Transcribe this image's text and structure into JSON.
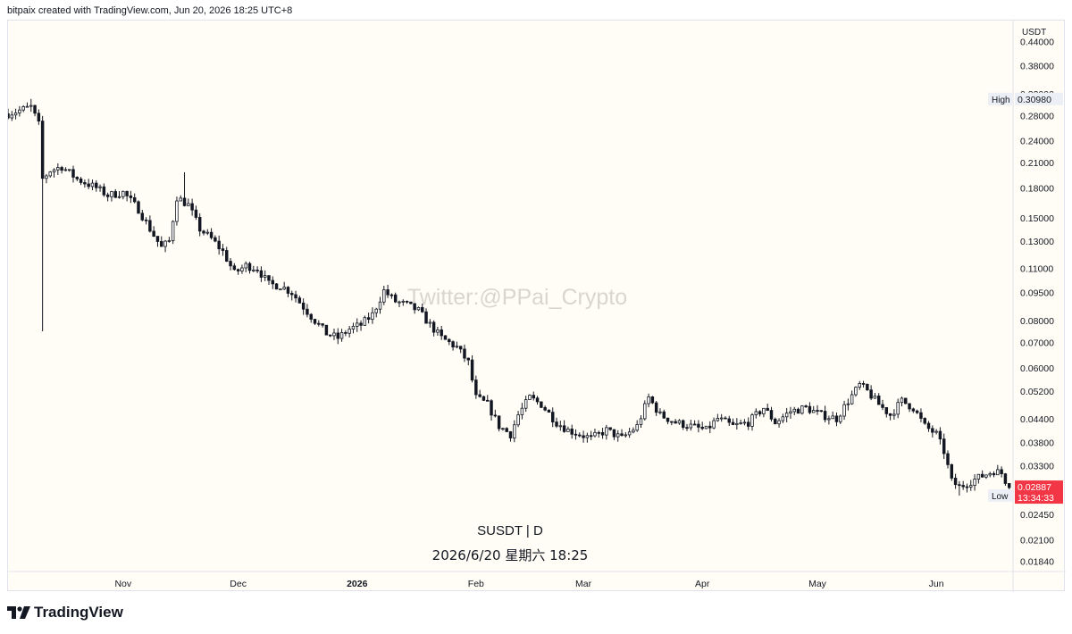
{
  "header": {
    "caption": "bitpaix created with TradingView.com, Jun 20, 2026 18:25 UTC+8"
  },
  "footer": {
    "brand": "TradingView"
  },
  "colors": {
    "up": "#22ab94",
    "down": "#f23645",
    "candle_fill": "#ffffff",
    "candle_stroke": "#131722",
    "down_body": "#131722",
    "last_price_bg": "#f23645",
    "bg": "#fffdf5"
  },
  "chart_data": {
    "type": "candlestick",
    "symbol": "SUSDT | D",
    "timestamp": "2026/6/20 星期六 18:25",
    "watermark": "Twitter:@PPai_Crypto",
    "y_axis_title": "USDT",
    "y_scale": "log",
    "y_ticks": [
      "0.44000",
      "0.38000",
      "0.32000",
      "0.28000",
      "0.24000",
      "0.21000",
      "0.18000",
      "0.15000",
      "0.13000",
      "0.11000",
      "0.09500",
      "0.08000",
      "0.07000",
      "0.06000",
      "0.05200",
      "0.04400",
      "0.03800",
      "0.03300",
      "0.02850",
      "0.02450",
      "0.02100",
      "0.01840"
    ],
    "x_ticks": [
      {
        "label": "Nov",
        "date": "2025-11-01",
        "bold": false
      },
      {
        "label": "Dec",
        "date": "2025-12-01",
        "bold": false
      },
      {
        "label": "2026",
        "date": "2026-01-01",
        "bold": true
      },
      {
        "label": "Feb",
        "date": "2026-02-01",
        "bold": false
      },
      {
        "label": "Mar",
        "date": "2026-03-01",
        "bold": false
      },
      {
        "label": "Apr",
        "date": "2026-04-01",
        "bold": false
      },
      {
        "label": "May",
        "date": "2026-05-01",
        "bold": false
      },
      {
        "label": "Jun",
        "date": "2026-06-01",
        "bold": false
      }
    ],
    "x_range": [
      "2025-10-02",
      "2026-06-21"
    ],
    "y_range": [
      0.0173,
      0.5
    ],
    "high": {
      "label": "High",
      "value": "0.30980",
      "price": 0.3098
    },
    "low": {
      "label": "Low",
      "value": "0.02751",
      "price": 0.02751
    },
    "last": {
      "value": "0.02887",
      "countdown": "13:34:33",
      "price": 0.02887
    },
    "close_path": [
      [
        "2025-10-02",
        0.283
      ],
      [
        "2025-10-08",
        0.295
      ],
      [
        "2025-10-10",
        0.265
      ],
      [
        "2025-10-11",
        0.19
      ],
      [
        "2025-10-13",
        0.2
      ],
      [
        "2025-10-16",
        0.205
      ],
      [
        "2025-10-20",
        0.19
      ],
      [
        "2025-10-25",
        0.18
      ],
      [
        "2025-10-28",
        0.172
      ],
      [
        "2025-11-01",
        0.175
      ],
      [
        "2025-11-05",
        0.158
      ],
      [
        "2025-11-08",
        0.14
      ],
      [
        "2025-11-11",
        0.125
      ],
      [
        "2025-11-13",
        0.13
      ],
      [
        "2025-11-15",
        0.17
      ],
      [
        "2025-11-18",
        0.162
      ],
      [
        "2025-11-21",
        0.14
      ],
      [
        "2025-11-24",
        0.132
      ],
      [
        "2025-11-27",
        0.122
      ],
      [
        "2025-11-30",
        0.107
      ],
      [
        "2025-12-03",
        0.112
      ],
      [
        "2025-12-06",
        0.11
      ],
      [
        "2025-12-09",
        0.1
      ],
      [
        "2025-12-12",
        0.099
      ],
      [
        "2025-12-15",
        0.095
      ],
      [
        "2025-12-18",
        0.087
      ],
      [
        "2025-12-21",
        0.08
      ],
      [
        "2025-12-24",
        0.074
      ],
      [
        "2025-12-27",
        0.072
      ],
      [
        "2025-12-30",
        0.076
      ],
      [
        "2026-01-02",
        0.078
      ],
      [
        "2026-01-05",
        0.083
      ],
      [
        "2026-01-08",
        0.096
      ],
      [
        "2026-01-11",
        0.09
      ],
      [
        "2026-01-14",
        0.088
      ],
      [
        "2026-01-17",
        0.085
      ],
      [
        "2026-01-20",
        0.078
      ],
      [
        "2026-01-23",
        0.072
      ],
      [
        "2026-01-27",
        0.068
      ],
      [
        "2026-01-30",
        0.062
      ],
      [
        "2026-02-01",
        0.05
      ],
      [
        "2026-02-04",
        0.048
      ],
      [
        "2026-02-07",
        0.042
      ],
      [
        "2026-02-10",
        0.04
      ],
      [
        "2026-02-12",
        0.045
      ],
      [
        "2026-02-15",
        0.05
      ],
      [
        "2026-02-18",
        0.048
      ],
      [
        "2026-02-22",
        0.043
      ],
      [
        "2026-02-25",
        0.041
      ],
      [
        "2026-02-28",
        0.04
      ],
      [
        "2026-03-03",
        0.039
      ],
      [
        "2026-03-07",
        0.041
      ],
      [
        "2026-03-11",
        0.039
      ],
      [
        "2026-03-15",
        0.042
      ],
      [
        "2026-03-18",
        0.05
      ],
      [
        "2026-03-21",
        0.045
      ],
      [
        "2026-03-25",
        0.043
      ],
      [
        "2026-03-29",
        0.042
      ],
      [
        "2026-04-02",
        0.041
      ],
      [
        "2026-04-05",
        0.044
      ],
      [
        "2026-04-09",
        0.042
      ],
      [
        "2026-04-13",
        0.043
      ],
      [
        "2026-04-17",
        0.047
      ],
      [
        "2026-04-20",
        0.043
      ],
      [
        "2026-04-24",
        0.046
      ],
      [
        "2026-04-28",
        0.047
      ],
      [
        "2026-05-02",
        0.045
      ],
      [
        "2026-05-06",
        0.044
      ],
      [
        "2026-05-09",
        0.049
      ],
      [
        "2026-05-12",
        0.054
      ],
      [
        "2026-05-14",
        0.052
      ],
      [
        "2026-05-17",
        0.048
      ],
      [
        "2026-05-20",
        0.045
      ],
      [
        "2026-05-23",
        0.049
      ],
      [
        "2026-05-26",
        0.047
      ],
      [
        "2026-05-29",
        0.042
      ],
      [
        "2026-06-01",
        0.04
      ],
      [
        "2026-06-03",
        0.036
      ],
      [
        "2026-06-05",
        0.03
      ],
      [
        "2026-06-07",
        0.029
      ],
      [
        "2026-06-10",
        0.03
      ],
      [
        "2026-06-13",
        0.031
      ],
      [
        "2026-06-16",
        0.032
      ],
      [
        "2026-06-18",
        0.0315
      ],
      [
        "2026-06-20",
        0.02887
      ]
    ],
    "spikes": [
      {
        "date": "2025-10-11",
        "low": 0.075
      },
      {
        "date": "2025-11-17",
        "high": 0.198
      }
    ]
  }
}
